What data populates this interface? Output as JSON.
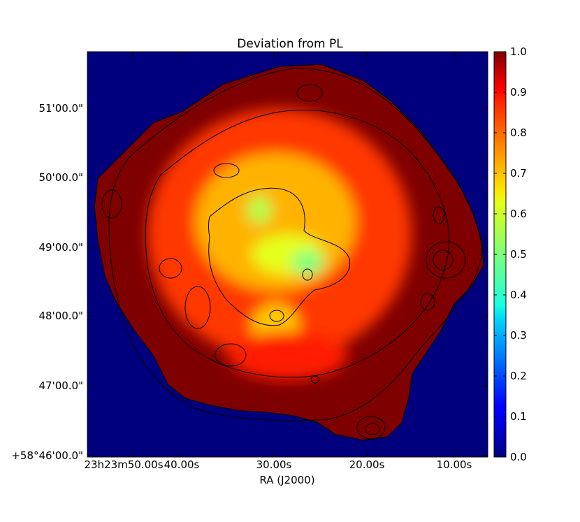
{
  "chart_data": {
    "type": "heatmap",
    "title": "Deviation from PL",
    "xlabel": "RA (J2000)",
    "ylabel": "",
    "x_ticks": [
      "23h23m50.00s",
      "40.00s",
      "30.00s",
      "20.00s",
      "10.00s"
    ],
    "y_ticks": [
      "+58°46'00.0\"",
      "47'00.0\"",
      "48'00.0\"",
      "49'00.0\"",
      "50'00.0\"",
      "51'00.0\""
    ],
    "colorbar": {
      "min": 0.0,
      "max": 1.0,
      "ticks": [
        "0.0",
        "0.1",
        "0.2",
        "0.3",
        "0.4",
        "0.5",
        "0.6",
        "0.7",
        "0.8",
        "0.9",
        "1.0"
      ]
    },
    "colormap": "jet",
    "background_value": 0.0,
    "remnant_base_value": 1.0,
    "regions": [
      {
        "label": "orange-yellow shell",
        "cx": 0.48,
        "cy": 0.55,
        "rx": 0.33,
        "ry": 0.31,
        "value": 0.82
      },
      {
        "label": "inner yellow core",
        "cx": 0.47,
        "cy": 0.58,
        "rx": 0.2,
        "ry": 0.17,
        "value": 0.7
      },
      {
        "label": "yellow-green center",
        "cx": 0.5,
        "cy": 0.5,
        "rx": 0.09,
        "ry": 0.05,
        "value": 0.6
      },
      {
        "label": "green patch",
        "cx": 0.43,
        "cy": 0.61,
        "rx": 0.03,
        "ry": 0.035,
        "value": 0.55
      },
      {
        "label": "green center knot",
        "cx": 0.55,
        "cy": 0.48,
        "rx": 0.04,
        "ry": 0.03,
        "value": 0.5
      },
      {
        "label": "lower yellow lobe",
        "cx": 0.47,
        "cy": 0.32,
        "rx": 0.06,
        "ry": 0.06,
        "value": 0.68
      },
      {
        "label": "south orange rim",
        "cx": 0.5,
        "cy": 0.25,
        "rx": 0.15,
        "ry": 0.06,
        "value": 0.85
      }
    ]
  }
}
